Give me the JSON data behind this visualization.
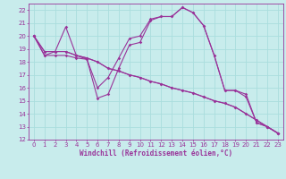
{
  "bg_color": "#c8ecec",
  "line_color": "#993399",
  "grid_color": "#aadddd",
  "xlabel": "Windchill (Refroidissement éolien,°C)",
  "xlim": [
    -0.5,
    23.5
  ],
  "ylim": [
    12,
    22.5
  ],
  "xticks": [
    0,
    1,
    2,
    3,
    4,
    5,
    6,
    7,
    8,
    9,
    10,
    11,
    12,
    13,
    14,
    15,
    16,
    17,
    18,
    19,
    20,
    21,
    22,
    23
  ],
  "yticks": [
    12,
    13,
    14,
    15,
    16,
    17,
    18,
    19,
    20,
    21,
    22
  ],
  "s1": [
    20.0,
    18.5,
    18.8,
    20.7,
    18.5,
    18.2,
    16.0,
    16.8,
    18.3,
    19.8,
    20.0,
    21.3,
    21.5,
    21.5,
    22.2,
    21.8,
    20.8,
    18.5,
    15.8,
    15.8,
    15.5,
    13.3,
    13.0,
    12.5
  ],
  "s2": [
    20.0,
    18.5,
    18.5,
    18.5,
    18.3,
    18.2,
    15.2,
    15.5,
    17.5,
    19.3,
    19.5,
    21.2,
    21.5,
    21.5,
    22.2,
    21.8,
    20.8,
    18.5,
    15.8,
    15.8,
    15.3,
    13.3,
    13.0,
    12.5
  ],
  "s3": [
    20.0,
    18.8,
    18.8,
    18.8,
    18.5,
    18.3,
    18.0,
    17.5,
    17.3,
    17.0,
    16.8,
    16.5,
    16.3,
    16.0,
    15.8,
    15.6,
    15.3,
    15.0,
    14.8,
    14.5,
    14.0,
    13.5,
    13.0,
    12.5
  ],
  "s4": [
    20.0,
    18.8,
    18.8,
    18.8,
    18.5,
    18.3,
    18.0,
    17.5,
    17.3,
    17.0,
    16.8,
    16.5,
    16.3,
    16.0,
    15.8,
    15.6,
    15.3,
    15.0,
    14.8,
    14.5,
    14.0,
    13.5,
    13.0,
    12.5
  ],
  "tick_fontsize": 5.0,
  "xlabel_fontsize": 5.5
}
